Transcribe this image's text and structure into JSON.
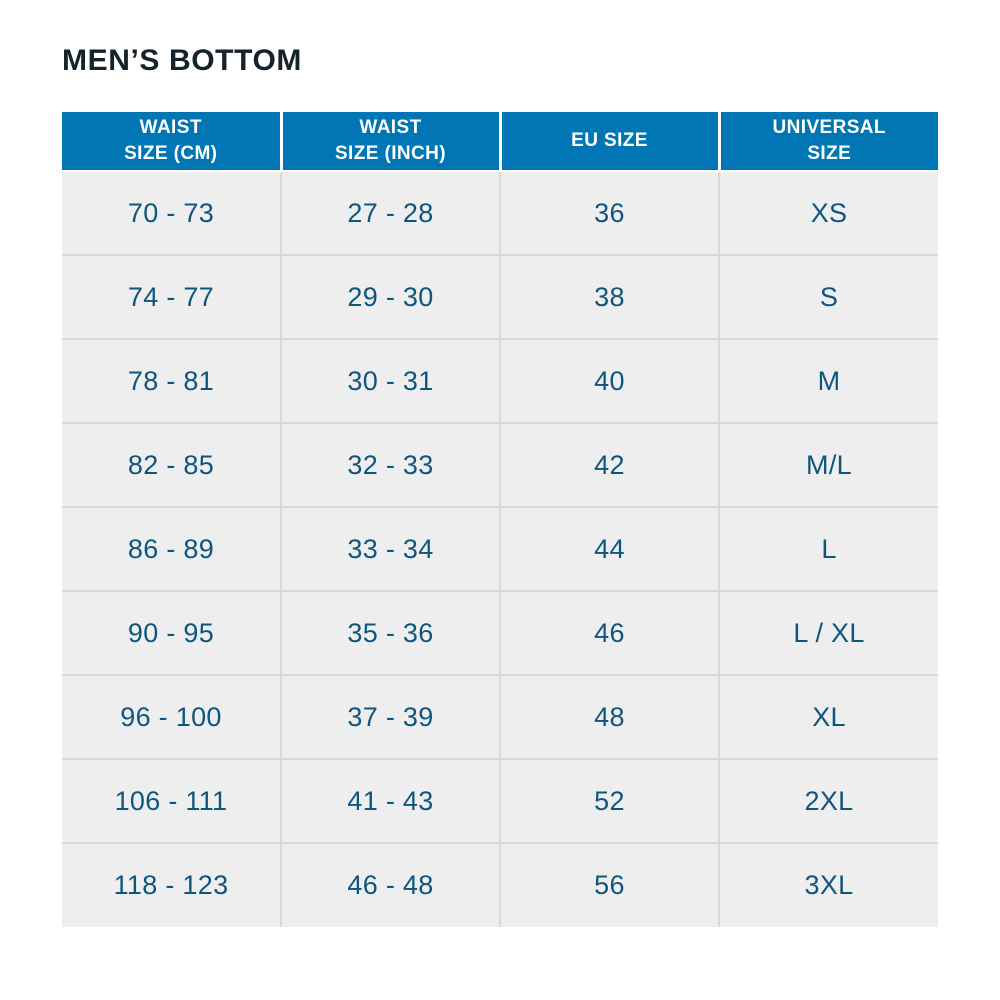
{
  "page": {
    "title": "MEN’S BOTTOM"
  },
  "colors": {
    "header_bg": "#0077b4",
    "header_text": "#ffffff",
    "header_divider": "#ffffff",
    "row_bg": "#eeeeef",
    "data_text": "#0f567e",
    "title_text": "#15232b",
    "grid_line": "#d9d9da",
    "page_bg": "#ffffff"
  },
  "chart_data": {
    "type": "table",
    "title": "MEN’S BOTTOM",
    "columns": [
      "WAIST\nSIZE (CM)",
      "WAIST\nSIZE (INCH)",
      "EU SIZE",
      "UNIVERSAL\nSIZE"
    ],
    "rows": [
      [
        "70 - 73",
        "27 - 28",
        "36",
        "XS"
      ],
      [
        "74 - 77",
        "29 - 30",
        "38",
        "S"
      ],
      [
        "78 - 81",
        "30 - 31",
        "40",
        "M"
      ],
      [
        "82 - 85",
        "32 - 33",
        "42",
        "M/L"
      ],
      [
        "86 - 89",
        "33 - 34",
        "44",
        "L"
      ],
      [
        "90 - 95",
        "35 - 36",
        "46",
        "L / XL"
      ],
      [
        "96 - 100",
        "37 - 39",
        "48",
        "XL"
      ],
      [
        "106 - 111",
        "41 - 43",
        "52",
        "2XL"
      ],
      [
        "118 - 123",
        "46 - 48",
        "56",
        "3XL"
      ]
    ]
  }
}
